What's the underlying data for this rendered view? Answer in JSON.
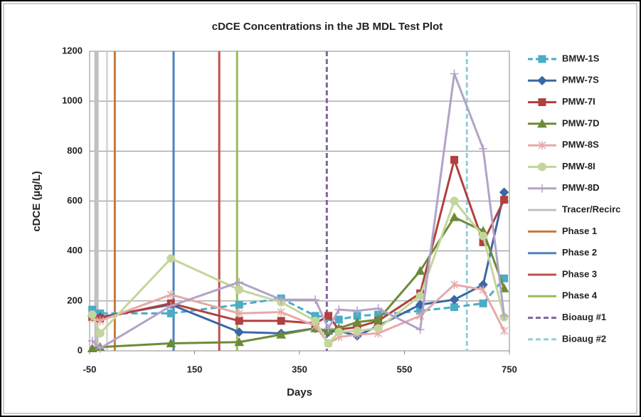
{
  "chart_data": {
    "type": "line",
    "title": "cDCE Concentrations in the JB MDL Test Plot",
    "xlabel": "Days",
    "ylabel": "cDCE (µg/L)",
    "x": [
      -45,
      -30,
      105,
      235,
      315,
      380,
      405,
      425,
      460,
      500,
      580,
      645,
      700,
      740
    ],
    "series": [
      {
        "name": "BMW-1S",
        "color": "#4bacc6",
        "marker": "square",
        "dash": true,
        "values": [
          165,
          150,
          150,
          185,
          210,
          140,
          135,
          125,
          140,
          145,
          160,
          175,
          190,
          290
        ]
      },
      {
        "name": "PMW-7S",
        "color": "#3a67a6",
        "marker": "diamond",
        "values": [
          140,
          135,
          185,
          75,
          70,
          90,
          75,
          80,
          60,
          100,
          185,
          205,
          265,
          635
        ]
      },
      {
        "name": "PMW-7I",
        "color": "#b0413e",
        "marker": "square",
        "values": [
          135,
          130,
          190,
          120,
          120,
          110,
          140,
          85,
          95,
          120,
          230,
          765,
          435,
          605
        ]
      },
      {
        "name": "PMW-7D",
        "color": "#6d8b36",
        "marker": "triangle",
        "values": [
          10,
          15,
          30,
          35,
          65,
          90,
          80,
          90,
          115,
          125,
          320,
          535,
          480,
          250
        ]
      },
      {
        "name": "PMW-8S",
        "color": "#e6a9a8",
        "marker": "star",
        "values": [
          130,
          120,
          225,
          150,
          155,
          100,
          30,
          55,
          65,
          70,
          140,
          265,
          245,
          80
        ]
      },
      {
        "name": "PMW-8I",
        "color": "#c3d69b",
        "marker": "circle",
        "values": [
          145,
          70,
          370,
          245,
          195,
          120,
          30,
          75,
          80,
          90,
          220,
          600,
          460,
          135
        ]
      },
      {
        "name": "PMW-8D",
        "color": "#b3a2c7",
        "marker": "plus",
        "values": [
          40,
          10,
          180,
          275,
          205,
          205,
          90,
          165,
          160,
          170,
          85,
          1110,
          810,
          140
        ]
      }
    ],
    "events": [
      {
        "name": "Tracer/Recirc",
        "color": "#c0c0c0",
        "x": [
          -37,
          -17
        ]
      },
      {
        "name": "Phase 1",
        "color": "#c87a3a",
        "x": [
          -2
        ]
      },
      {
        "name": "Phase 2",
        "color": "#4f81bd",
        "x": [
          110
        ]
      },
      {
        "name": "Phase 3",
        "color": "#c0504d",
        "x": [
          197
        ]
      },
      {
        "name": "Phase 4",
        "color": "#9bbb59",
        "x": [
          231
        ]
      },
      {
        "name": "Bioaug #1",
        "color": "#8064a2",
        "dash": true,
        "x": [
          402
        ]
      },
      {
        "name": "Bioaug #2",
        "color": "#93cddd",
        "dash": true,
        "x": [
          669
        ]
      }
    ],
    "xlim": [
      -50,
      750
    ],
    "xticks": [
      -50,
      150,
      350,
      550,
      750
    ],
    "ylim": [
      0,
      1200
    ],
    "yticks": [
      0,
      200,
      400,
      600,
      800,
      1000,
      1200
    ],
    "grid": true
  }
}
